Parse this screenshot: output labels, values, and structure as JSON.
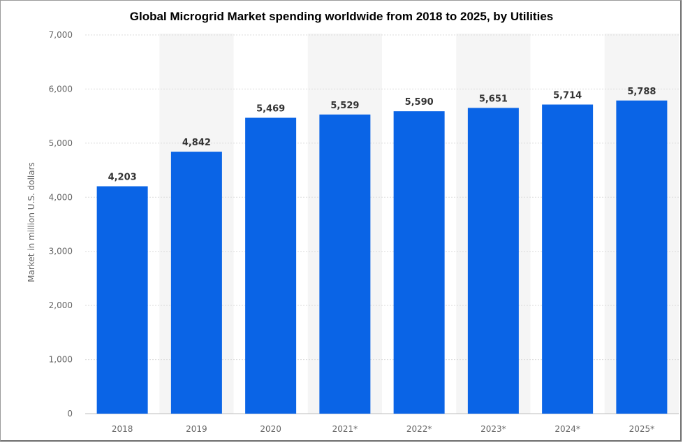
{
  "chart_data": {
    "type": "bar",
    "title": "Global Microgrid Market spending worldwide from 2018 to 2025, by Utilities",
    "xlabel": "",
    "ylabel": "Market in million U.S. dollars",
    "categories": [
      "2018",
      "2019",
      "2020",
      "2021*",
      "2022*",
      "2023*",
      "2024*",
      "2025*"
    ],
    "values": [
      4203,
      4842,
      5469,
      5529,
      5590,
      5651,
      5714,
      5788
    ],
    "value_labels": [
      "4,203",
      "4,842",
      "5,469",
      "5,529",
      "5,590",
      "5,651",
      "5,714",
      "5,788"
    ],
    "ylim": [
      0,
      7000
    ],
    "yticks": [
      0,
      1000,
      2000,
      3000,
      4000,
      5000,
      6000,
      7000
    ],
    "ytick_labels": [
      "0",
      "1,000",
      "2,000",
      "3,000",
      "4,000",
      "5,000",
      "6,000",
      "7,000"
    ],
    "grid": true,
    "bar_color": "#0a64e6",
    "alt_column_shading": "#f5f5f5"
  }
}
